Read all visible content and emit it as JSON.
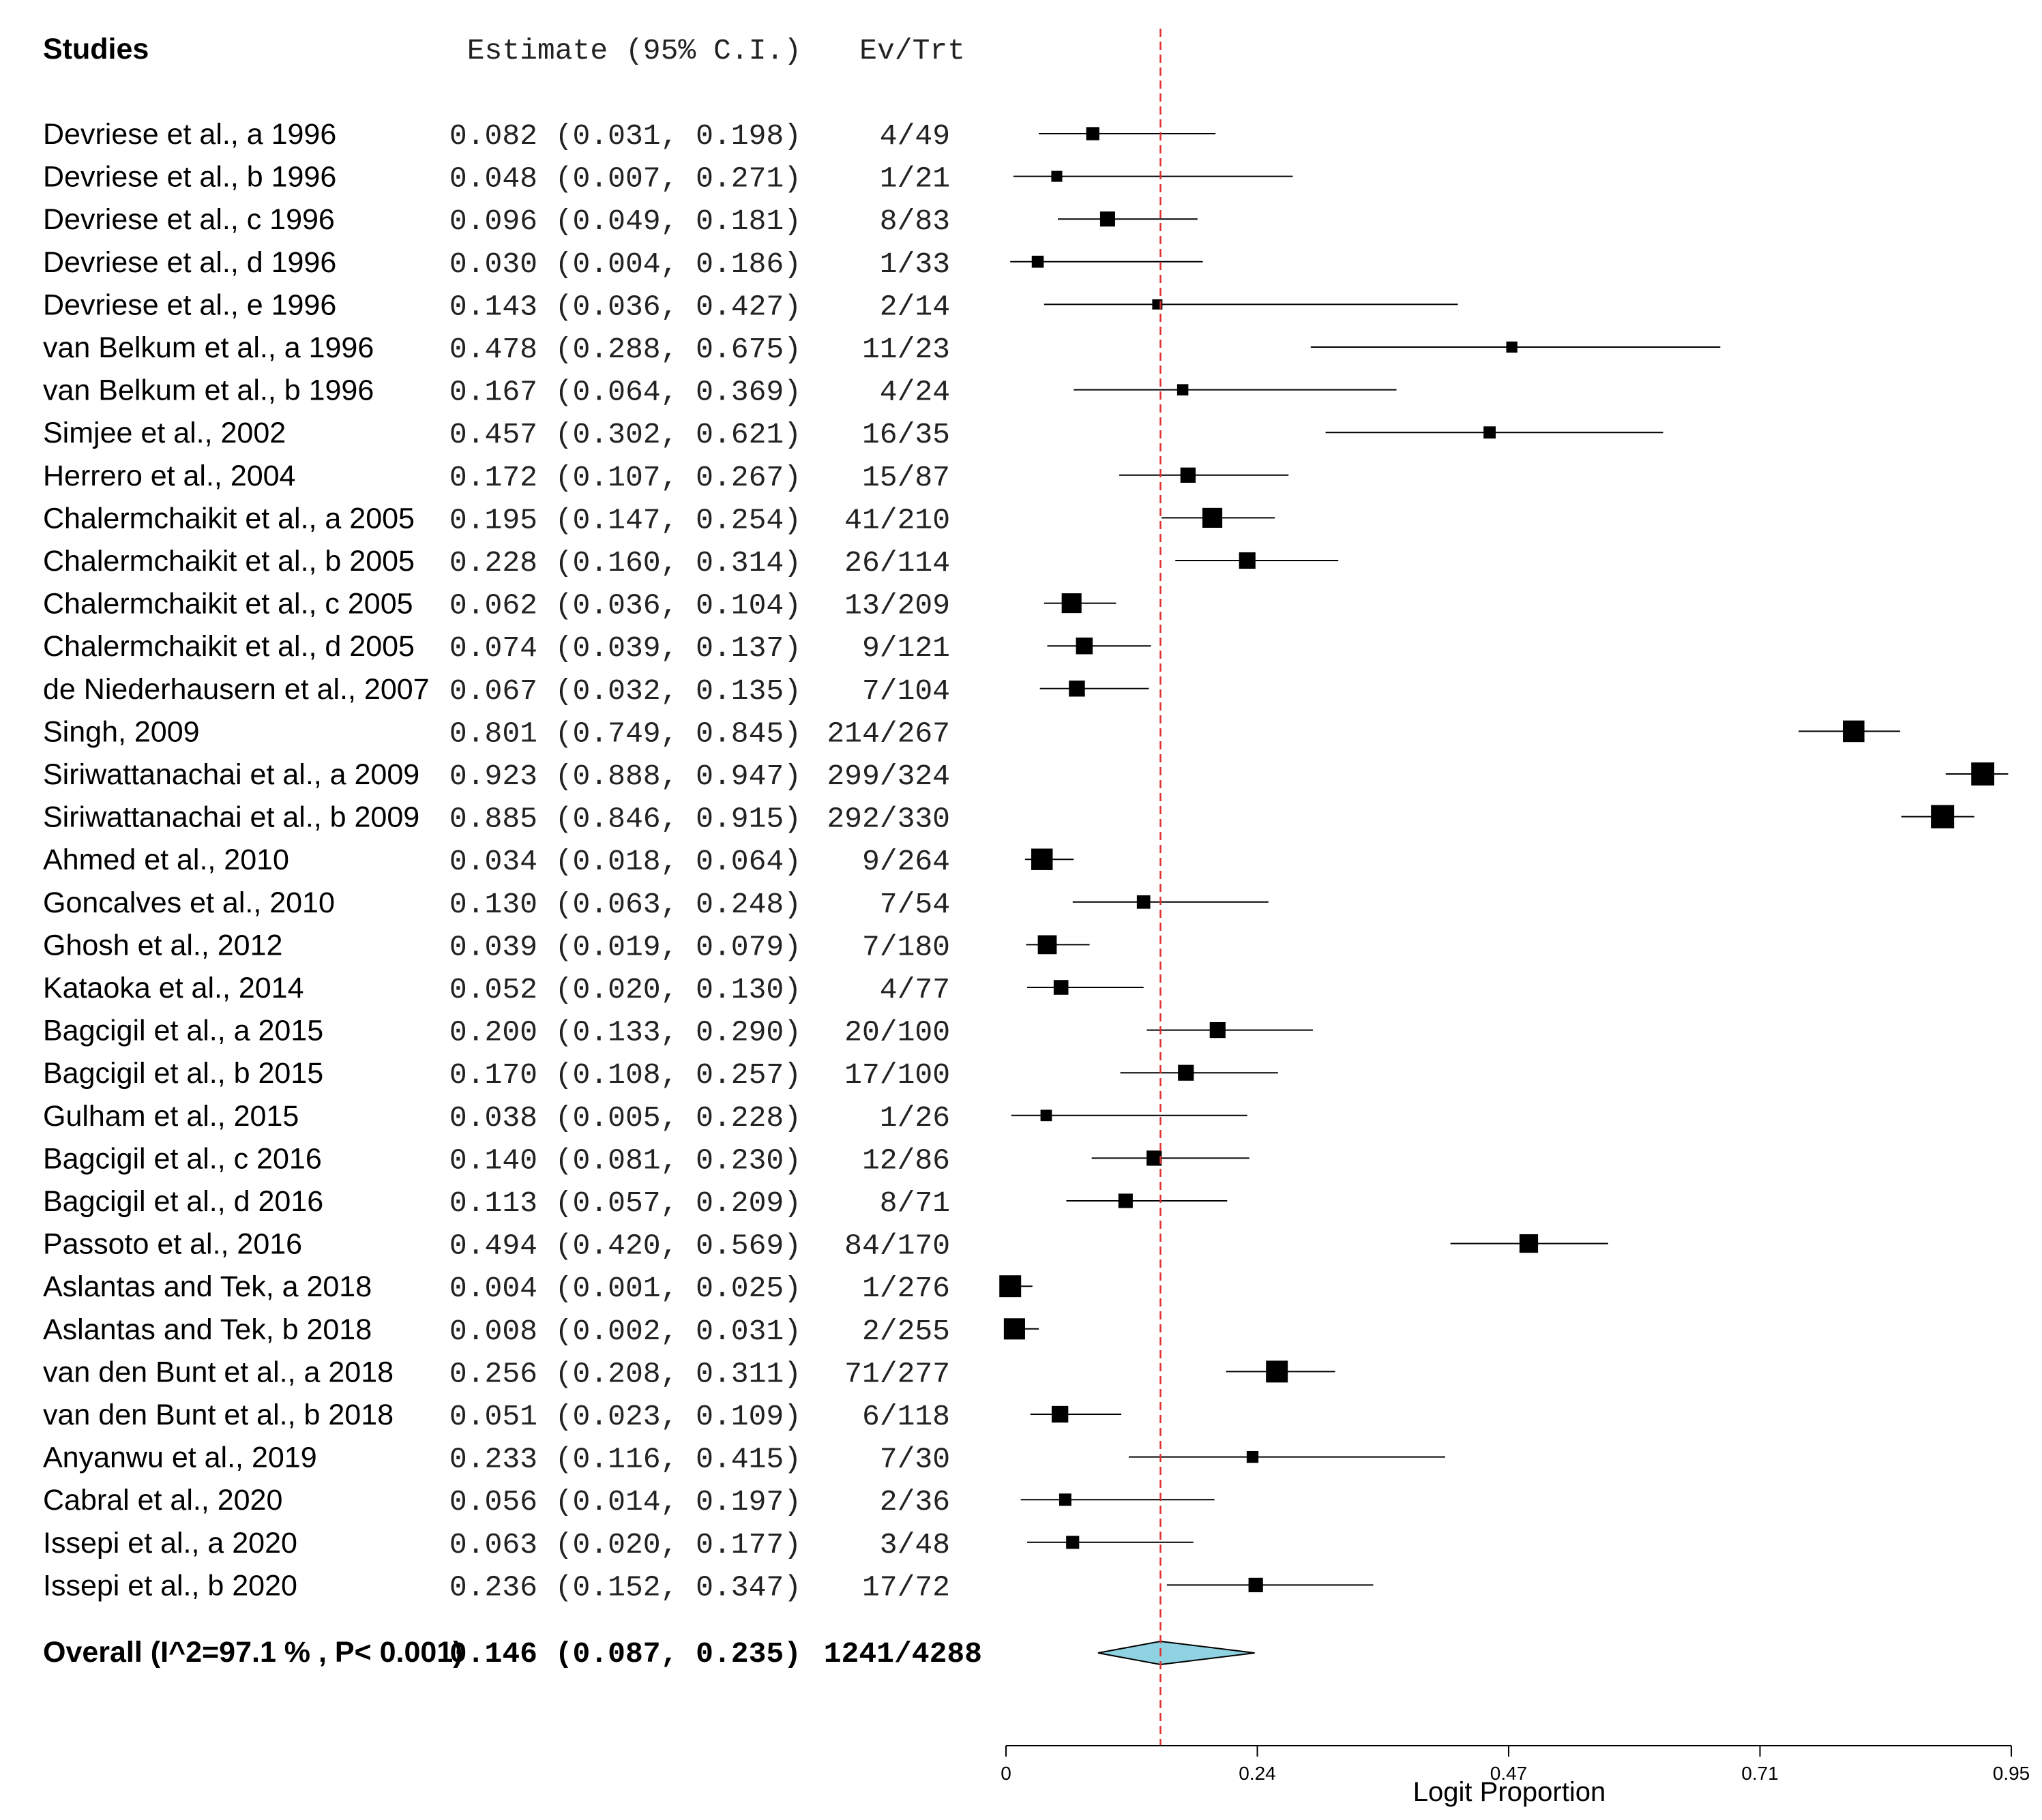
{
  "chart_data": {
    "type": "forest",
    "headers": {
      "studies": "Studies",
      "estimate": "Estimate (95% C.I.)",
      "events": "Ev/Trt"
    },
    "xlabel": "Logit Proportion",
    "x_ticks": [
      "0",
      "0.24",
      "0.47",
      "0.71",
      "0.95"
    ],
    "xlim": [
      0,
      0.95
    ],
    "reference_line": 0.146,
    "studies": [
      {
        "label": "Devriese et al., a 1996",
        "est": 0.082,
        "lo": 0.031,
        "hi": 0.198,
        "ci_text": "0.082 (0.031, 0.198)",
        "ev": "4/49",
        "n": 49
      },
      {
        "label": "Devriese et al., b 1996",
        "est": 0.048,
        "lo": 0.007,
        "hi": 0.271,
        "ci_text": "0.048 (0.007, 0.271)",
        "ev": "1/21",
        "n": 21
      },
      {
        "label": "Devriese et al., c 1996",
        "est": 0.096,
        "lo": 0.049,
        "hi": 0.181,
        "ci_text": "0.096 (0.049, 0.181)",
        "ev": "8/83",
        "n": 83
      },
      {
        "label": "Devriese et al., d 1996",
        "est": 0.03,
        "lo": 0.004,
        "hi": 0.186,
        "ci_text": "0.030 (0.004, 0.186)",
        "ev": "1/33",
        "n": 33
      },
      {
        "label": "Devriese et al., e 1996",
        "est": 0.143,
        "lo": 0.036,
        "hi": 0.427,
        "ci_text": "0.143 (0.036, 0.427)",
        "ev": "2/14",
        "n": 14
      },
      {
        "label": "van Belkum et al., a 1996",
        "est": 0.478,
        "lo": 0.288,
        "hi": 0.675,
        "ci_text": "0.478 (0.288, 0.675)",
        "ev": "11/23",
        "n": 23
      },
      {
        "label": "van Belkum et al., b 1996",
        "est": 0.167,
        "lo": 0.064,
        "hi": 0.369,
        "ci_text": "0.167 (0.064, 0.369)",
        "ev": "4/24",
        "n": 24
      },
      {
        "label": "Simjee et al., 2002",
        "est": 0.457,
        "lo": 0.302,
        "hi": 0.621,
        "ci_text": "0.457 (0.302, 0.621)",
        "ev": "16/35",
        "n": 35
      },
      {
        "label": "Herrero et al., 2004",
        "est": 0.172,
        "lo": 0.107,
        "hi": 0.267,
        "ci_text": "0.172 (0.107, 0.267)",
        "ev": "15/87",
        "n": 87
      },
      {
        "label": "Chalermchaikit et al., a 2005",
        "est": 0.195,
        "lo": 0.147,
        "hi": 0.254,
        "ci_text": "0.195 (0.147, 0.254)",
        "ev": "41/210",
        "n": 210
      },
      {
        "label": "Chalermchaikit et al., b 2005",
        "est": 0.228,
        "lo": 0.16,
        "hi": 0.314,
        "ci_text": "0.228 (0.160, 0.314)",
        "ev": "26/114",
        "n": 114
      },
      {
        "label": "Chalermchaikit et al., c 2005",
        "est": 0.062,
        "lo": 0.036,
        "hi": 0.104,
        "ci_text": "0.062 (0.036, 0.104)",
        "ev": "13/209",
        "n": 209
      },
      {
        "label": "Chalermchaikit et al., d 2005",
        "est": 0.074,
        "lo": 0.039,
        "hi": 0.137,
        "ci_text": "0.074 (0.039, 0.137)",
        "ev": "9/121",
        "n": 121
      },
      {
        "label": "de Niederhausern et al., 2007",
        "est": 0.067,
        "lo": 0.032,
        "hi": 0.135,
        "ci_text": "0.067 (0.032, 0.135)",
        "ev": "7/104",
        "n": 104
      },
      {
        "label": "Singh,  2009",
        "est": 0.801,
        "lo": 0.749,
        "hi": 0.845,
        "ci_text": "0.801 (0.749, 0.845)",
        "ev": "214/267",
        "n": 267
      },
      {
        "label": "Siriwattanachai et al., a 2009",
        "est": 0.923,
        "lo": 0.888,
        "hi": 0.947,
        "ci_text": "0.923 (0.888, 0.947)",
        "ev": "299/324",
        "n": 324
      },
      {
        "label": "Siriwattanachai et al., b 2009",
        "est": 0.885,
        "lo": 0.846,
        "hi": 0.915,
        "ci_text": "0.885 (0.846, 0.915)",
        "ev": "292/330",
        "n": 330
      },
      {
        "label": "Ahmed et al., 2010",
        "est": 0.034,
        "lo": 0.018,
        "hi": 0.064,
        "ci_text": "0.034 (0.018, 0.064)",
        "ev": "9/264",
        "n": 264
      },
      {
        "label": "Goncalves et al., 2010",
        "est": 0.13,
        "lo": 0.063,
        "hi": 0.248,
        "ci_text": "0.130 (0.063, 0.248)",
        "ev": "7/54",
        "n": 54
      },
      {
        "label": "Ghosh et al.,  2012",
        "est": 0.039,
        "lo": 0.019,
        "hi": 0.079,
        "ci_text": "0.039 (0.019, 0.079)",
        "ev": "7/180",
        "n": 180
      },
      {
        "label": "Kataoka et al., 2014",
        "est": 0.052,
        "lo": 0.02,
        "hi": 0.13,
        "ci_text": "0.052 (0.020, 0.130)",
        "ev": "4/77",
        "n": 77
      },
      {
        "label": "Bagcigil et al., a 2015",
        "est": 0.2,
        "lo": 0.133,
        "hi": 0.29,
        "ci_text": "0.200 (0.133, 0.290)",
        "ev": "20/100",
        "n": 100
      },
      {
        "label": "Bagcigil et al., b 2015",
        "est": 0.17,
        "lo": 0.108,
        "hi": 0.257,
        "ci_text": "0.170 (0.108, 0.257)",
        "ev": "17/100",
        "n": 100
      },
      {
        "label": "Gulham et al., 2015",
        "est": 0.038,
        "lo": 0.005,
        "hi": 0.228,
        "ci_text": "0.038 (0.005, 0.228)",
        "ev": "1/26",
        "n": 26
      },
      {
        "label": "Bagcigil et al., c 2016",
        "est": 0.14,
        "lo": 0.081,
        "hi": 0.23,
        "ci_text": "0.140 (0.081, 0.230)",
        "ev": "12/86",
        "n": 86
      },
      {
        "label": "Bagcigil et al., d 2016",
        "est": 0.113,
        "lo": 0.057,
        "hi": 0.209,
        "ci_text": "0.113 (0.057, 0.209)",
        "ev": "8/71",
        "n": 71
      },
      {
        "label": "Passoto et al., 2016",
        "est": 0.494,
        "lo": 0.42,
        "hi": 0.569,
        "ci_text": "0.494 (0.420, 0.569)",
        "ev": "84/170",
        "n": 170
      },
      {
        "label": "Aslantas and Tek, a 2018",
        "est": 0.004,
        "lo": 0.001,
        "hi": 0.025,
        "ci_text": "0.004 (0.001, 0.025)",
        "ev": "1/276",
        "n": 276
      },
      {
        "label": "Aslantas and Tek, b 2018",
        "est": 0.008,
        "lo": 0.002,
        "hi": 0.031,
        "ci_text": "0.008 (0.002, 0.031)",
        "ev": "2/255",
        "n": 255
      },
      {
        "label": "van den Bunt et al., a 2018",
        "est": 0.256,
        "lo": 0.208,
        "hi": 0.311,
        "ci_text": "0.256 (0.208, 0.311)",
        "ev": "71/277",
        "n": 277
      },
      {
        "label": "van den Bunt et al., b 2018",
        "est": 0.051,
        "lo": 0.023,
        "hi": 0.109,
        "ci_text": "0.051 (0.023, 0.109)",
        "ev": "6/118",
        "n": 118
      },
      {
        "label": "Anyanwu et al., 2019",
        "est": 0.233,
        "lo": 0.116,
        "hi": 0.415,
        "ci_text": "0.233 (0.116, 0.415)",
        "ev": "7/30",
        "n": 30
      },
      {
        "label": "Cabral et al., 2020",
        "est": 0.056,
        "lo": 0.014,
        "hi": 0.197,
        "ci_text": "0.056 (0.014, 0.197)",
        "ev": "2/36",
        "n": 36
      },
      {
        "label": "Issepi et al., a 2020",
        "est": 0.063,
        "lo": 0.02,
        "hi": 0.177,
        "ci_text": "0.063 (0.020, 0.177)",
        "ev": "3/48",
        "n": 48
      },
      {
        "label": "Issepi et al., b 2020",
        "est": 0.236,
        "lo": 0.152,
        "hi": 0.347,
        "ci_text": "0.236 (0.152, 0.347)",
        "ev": "17/72",
        "n": 72
      }
    ],
    "overall": {
      "label": "Overall (I^2=97.1 % , P< 0.001)",
      "est": 0.146,
      "lo": 0.087,
      "hi": 0.235,
      "ci_text": "0.146 (0.087, 0.235)",
      "ev": "1241/4288"
    },
    "colors": {
      "reference_line": "#e03030",
      "diamond_fill": "#8fd3e3",
      "marks": "#000000"
    }
  }
}
